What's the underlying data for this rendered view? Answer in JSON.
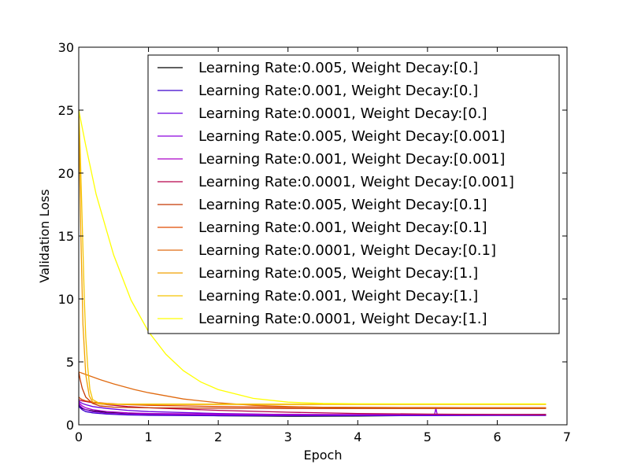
{
  "chart_data": {
    "type": "line",
    "title": "",
    "xlabel": "Epoch",
    "ylabel": "Validation Loss",
    "xlim": [
      0,
      7
    ],
    "ylim": [
      0,
      30
    ],
    "xticks": [
      0,
      1,
      2,
      3,
      4,
      5,
      6,
      7
    ],
    "yticks": [
      0,
      5,
      10,
      15,
      20,
      25,
      30
    ],
    "grid": false,
    "legend_position": "top-right",
    "series": [
      {
        "name": "Learning Rate:0.005, Weight Decay:[0.]",
        "color": "#000000",
        "x": [
          0,
          0.02,
          0.05,
          0.1,
          0.2,
          0.4,
          0.7,
          1,
          2,
          3,
          4,
          5,
          6,
          6.7
        ],
        "y": [
          1.6,
          1.45,
          1.3,
          1.2,
          1.1,
          1.0,
          0.92,
          0.85,
          0.72,
          0.68,
          0.7,
          0.75,
          0.8,
          0.82
        ]
      },
      {
        "name": "Learning Rate:0.001, Weight Decay:[0.]",
        "color": "#3a00cc",
        "x": [
          0,
          0.02,
          0.05,
          0.1,
          0.2,
          0.4,
          0.7,
          1,
          2,
          3,
          4,
          5,
          6,
          6.7
        ],
        "y": [
          1.5,
          1.35,
          1.2,
          1.05,
          0.95,
          0.85,
          0.78,
          0.75,
          0.72,
          0.72,
          0.73,
          0.73,
          0.74,
          0.74
        ]
      },
      {
        "name": "Learning Rate:0.0001, Weight Decay:[0.]",
        "color": "#6a00e0",
        "x": [
          0,
          0.02,
          0.05,
          0.1,
          0.2,
          0.4,
          0.7,
          1,
          2,
          3,
          4,
          5,
          6,
          6.7
        ],
        "y": [
          1.9,
          1.8,
          1.7,
          1.6,
          1.45,
          1.3,
          1.15,
          1.05,
          0.9,
          0.82,
          0.78,
          0.76,
          0.75,
          0.75
        ]
      },
      {
        "name": "Learning Rate:0.005, Weight Decay:[0.001]",
        "color": "#8c00dd",
        "x": [
          0,
          0.02,
          0.05,
          0.1,
          0.2,
          0.4,
          0.7,
          1,
          2,
          3,
          4,
          5,
          5.1,
          5.12,
          5.14,
          5.2,
          6,
          6.7
        ],
        "y": [
          1.7,
          1.5,
          1.35,
          1.2,
          1.05,
          0.92,
          0.85,
          0.82,
          0.78,
          0.77,
          0.78,
          0.8,
          0.8,
          1.3,
          0.8,
          0.8,
          0.8,
          0.8
        ]
      },
      {
        "name": "Learning Rate:0.001, Weight Decay:[0.001]",
        "color": "#aa00c8",
        "x": [
          0,
          0.02,
          0.05,
          0.1,
          0.2,
          0.4,
          0.7,
          1,
          2,
          3,
          4,
          5,
          6,
          6.7
        ],
        "y": [
          1.8,
          1.65,
          1.5,
          1.35,
          1.2,
          1.05,
          0.95,
          0.9,
          0.85,
          0.83,
          0.82,
          0.82,
          0.82,
          0.82
        ]
      },
      {
        "name": "Learning Rate:0.0001, Weight Decay:[0.001]",
        "color": "#b8004a",
        "x": [
          0,
          0.02,
          0.05,
          0.1,
          0.2,
          0.4,
          0.7,
          1,
          2,
          3,
          4,
          5,
          6,
          6.7
        ],
        "y": [
          2.0,
          1.95,
          1.9,
          1.85,
          1.75,
          1.6,
          1.45,
          1.35,
          1.15,
          1.0,
          0.9,
          0.85,
          0.82,
          0.8
        ]
      },
      {
        "name": "Learning Rate:0.005, Weight Decay:[0.1]",
        "color": "#c43800",
        "x": [
          0,
          0.02,
          0.05,
          0.1,
          0.2,
          0.3,
          0.5,
          1,
          2,
          3,
          4,
          5,
          6,
          6.7
        ],
        "y": [
          4.2,
          3.6,
          2.9,
          2.2,
          1.7,
          1.5,
          1.4,
          1.35,
          1.32,
          1.3,
          1.3,
          1.3,
          1.3,
          1.3
        ]
      },
      {
        "name": "Learning Rate:0.001, Weight Decay:[0.1]",
        "color": "#e04a00",
        "x": [
          0,
          0.02,
          0.05,
          0.1,
          0.2,
          0.4,
          0.7,
          1,
          2,
          3,
          4,
          5,
          6,
          6.7
        ],
        "y": [
          2.2,
          2.1,
          2.0,
          1.9,
          1.8,
          1.7,
          1.6,
          1.55,
          1.45,
          1.4,
          1.38,
          1.37,
          1.36,
          1.36
        ]
      },
      {
        "name": "Learning Rate:0.0001, Weight Decay:[0.1]",
        "color": "#e06a10",
        "x": [
          0,
          0.1,
          0.3,
          0.5,
          0.8,
          1,
          1.5,
          2,
          2.5,
          3,
          3.5,
          4,
          5,
          6,
          6.7
        ],
        "y": [
          4.2,
          4.0,
          3.6,
          3.25,
          2.8,
          2.55,
          2.05,
          1.75,
          1.55,
          1.45,
          1.4,
          1.38,
          1.36,
          1.36,
          1.36
        ]
      },
      {
        "name": "Learning Rate:0.005, Weight Decay:[1.]",
        "color": "#f0a000",
        "x": [
          0,
          0.03,
          0.06,
          0.1,
          0.15,
          0.2,
          0.3,
          0.5,
          1,
          2,
          3,
          4,
          5,
          6,
          6.7
        ],
        "y": [
          25,
          15,
          8,
          4.0,
          2.3,
          1.8,
          1.65,
          1.62,
          1.62,
          1.62,
          1.62,
          1.62,
          1.62,
          1.62,
          1.62
        ]
      },
      {
        "name": "Learning Rate:0.001, Weight Decay:[1.]",
        "color": "#f5c400",
        "x": [
          0,
          0.02,
          0.04,
          0.06,
          0.08,
          0.1,
          0.13,
          0.16,
          0.2,
          0.3,
          0.5,
          1,
          2,
          3,
          4,
          5,
          6,
          6.7
        ],
        "y": [
          25,
          22,
          18,
          14,
          10,
          7,
          4.5,
          2.8,
          2.0,
          1.7,
          1.65,
          1.65,
          1.65,
          1.65,
          1.65,
          1.65,
          1.65,
          1.65
        ]
      },
      {
        "name": "Learning Rate:0.0001, Weight Decay:[1.]",
        "color": "#ffff00",
        "x": [
          0,
          0.1,
          0.25,
          0.5,
          0.75,
          1,
          1.25,
          1.5,
          1.75,
          2,
          2.5,
          3,
          3.5,
          4,
          5,
          6,
          6.7
        ],
        "y": [
          25,
          22.2,
          18.3,
          13.5,
          9.9,
          7.4,
          5.6,
          4.3,
          3.4,
          2.8,
          2.1,
          1.8,
          1.7,
          1.67,
          1.66,
          1.66,
          1.66
        ]
      }
    ]
  }
}
